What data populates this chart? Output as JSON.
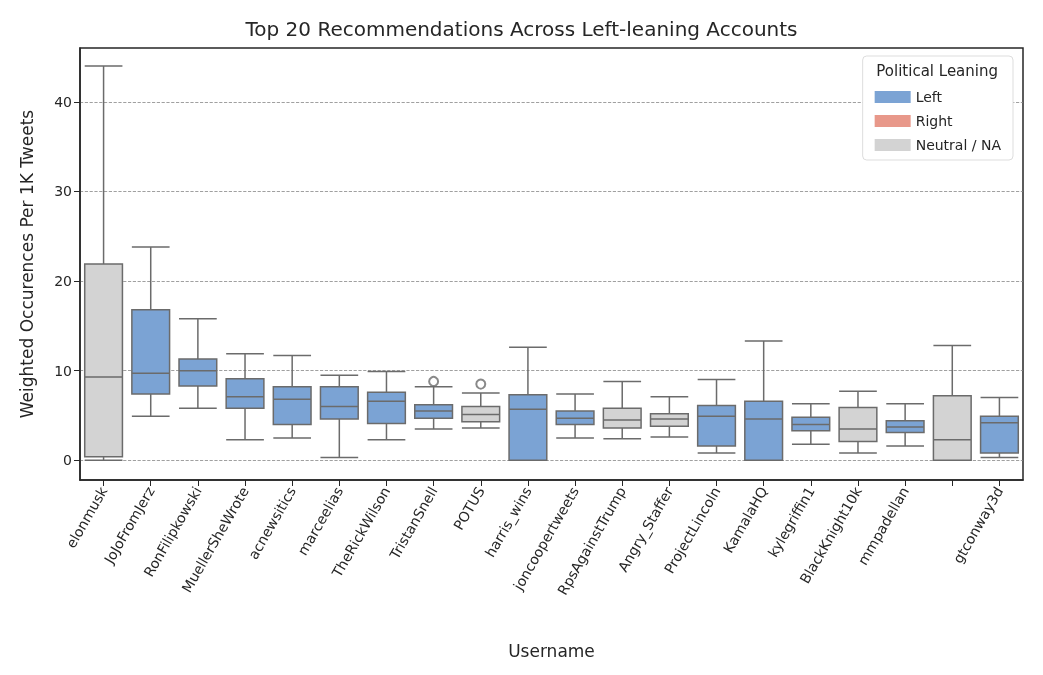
{
  "chart_data": {
    "type": "box",
    "title": "Top 20 Recommendations Across Left-leaning Accounts",
    "xlabel": "Username",
    "ylabel": "Weighted Occurences Per 1K Tweets",
    "legend_title": "Political Leaning",
    "categories": [
      "elonmusk",
      "JoJoFromJerz",
      "RonFilipkowski",
      "MuellerSheWrote",
      "acnewsitics",
      "marceelias",
      "TheRickWilson",
      "TristanSnell",
      "POTUS",
      "harris_wins",
      "joncoopertweets",
      "RpsAgainstTrump",
      "Angry_Staffer",
      "ProjectLincoln",
      "KamalaHQ",
      "kylegriffin1",
      "BlackKnight10k",
      "mmpadellan",
      null,
      "gtconway3d"
    ],
    "series": [
      {
        "name": "Left",
        "color": "#7ba3d4",
        "boxes": [
          null,
          {
            "low": 4.9,
            "q1": 7.4,
            "median": 9.7,
            "q3": 16.8,
            "high": 23.8
          },
          {
            "low": 5.8,
            "q1": 8.3,
            "median": 10,
            "q3": 11.3,
            "high": 15.8
          },
          {
            "low": 2.3,
            "q1": 5.8,
            "median": 7.1,
            "q3": 9.1,
            "high": 11.9
          },
          {
            "low": 2.5,
            "q1": 4,
            "median": 6.8,
            "q3": 8.2,
            "high": 11.7
          },
          {
            "low": 0.3,
            "q1": 4.6,
            "median": 6,
            "q3": 8.2,
            "high": 9.5
          },
          {
            "low": 2.3,
            "q1": 4.1,
            "median": 6.6,
            "q3": 7.6,
            "high": 9.9
          },
          {
            "low": 3.5,
            "q1": 4.7,
            "median": 5.5,
            "q3": 6.2,
            "high": 8.2,
            "outliers": [
              8.8
            ]
          },
          null,
          {
            "low": 0,
            "q1": 0,
            "median": 5.7,
            "q3": 7.3,
            "high": 12.6
          },
          {
            "low": 2.5,
            "q1": 4,
            "median": 4.7,
            "q3": 5.5,
            "high": 7.4
          },
          null,
          null,
          {
            "low": 0.8,
            "q1": 1.6,
            "median": 4.9,
            "q3": 6.1,
            "high": 9
          },
          {
            "low": 0,
            "q1": 0,
            "median": 4.6,
            "q3": 6.6,
            "high": 13.3
          },
          {
            "low": 1.8,
            "q1": 3.3,
            "median": 4,
            "q3": 4.8,
            "high": 6.3
          },
          null,
          {
            "low": 1.6,
            "q1": 3.1,
            "median": 3.7,
            "q3": 4.4,
            "high": 6.3
          },
          null,
          {
            "low": 0.3,
            "q1": 0.8,
            "median": 4.2,
            "q3": 4.9,
            "high": 7
          }
        ]
      },
      {
        "name": "Right",
        "color": "#e8988a",
        "boxes": [
          null,
          null,
          null,
          null,
          null,
          null,
          null,
          null,
          null,
          null,
          null,
          null,
          null,
          null,
          null,
          null,
          null,
          null,
          null,
          null
        ]
      },
      {
        "name": "Neutral / NA",
        "color": "#d3d3d3",
        "boxes": [
          {
            "low": 0,
            "q1": 0.4,
            "median": 9.3,
            "q3": 21.9,
            "high": 44
          },
          null,
          null,
          null,
          null,
          null,
          null,
          null,
          {
            "low": 3.6,
            "q1": 4.3,
            "median": 5.1,
            "q3": 6,
            "high": 7.5,
            "outliers": [
              8.5
            ]
          },
          null,
          null,
          {
            "low": 2.4,
            "q1": 3.6,
            "median": 4.5,
            "q3": 5.8,
            "high": 8.8
          },
          {
            "low": 2.6,
            "q1": 3.8,
            "median": 4.6,
            "q3": 5.2,
            "high": 7.1
          },
          null,
          null,
          null,
          {
            "low": 0.8,
            "q1": 2.1,
            "median": 3.5,
            "q3": 5.9,
            "high": 7.7
          },
          null,
          {
            "low": 0,
            "q1": 0,
            "median": 2.3,
            "q3": 7.2,
            "high": 12.8
          },
          null
        ]
      }
    ],
    "ylim": [
      -2.2,
      46
    ],
    "yticks": [
      0,
      10,
      20,
      30,
      40
    ],
    "grid": "y",
    "legend": "top right"
  }
}
